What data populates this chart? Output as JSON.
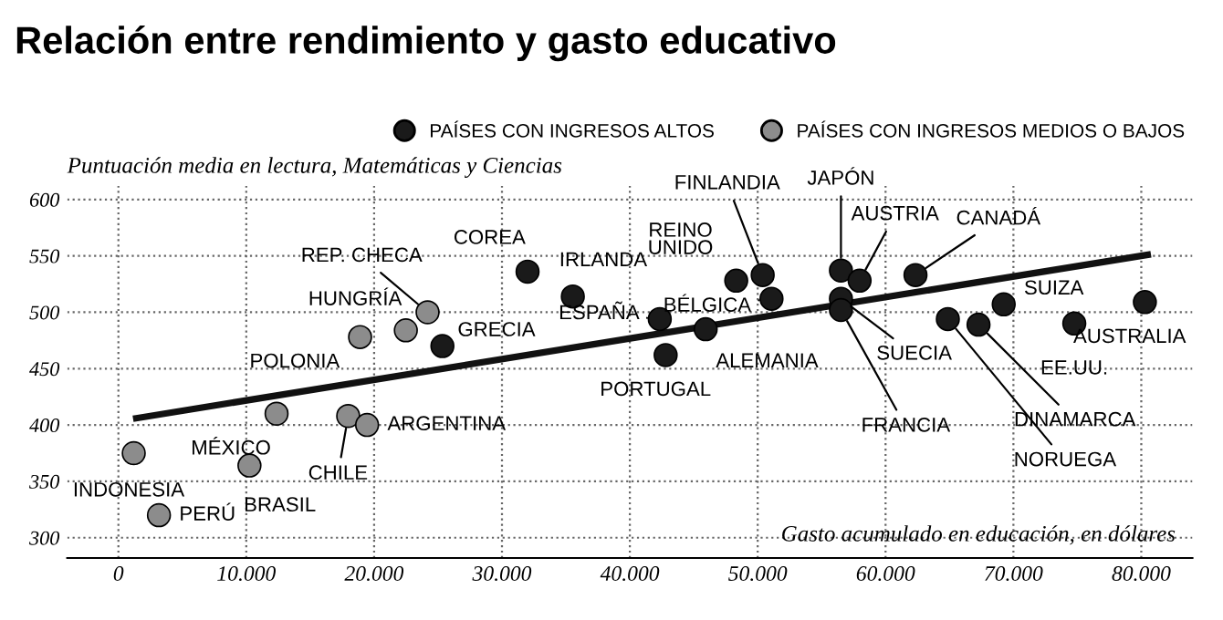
{
  "chart_data": {
    "type": "scatter",
    "title": "Relación entre rendimiento y gasto educativo",
    "ylabel": "Puntuación media en lectura, Matemáticas y Ciencias",
    "xlabel": "Gasto acumulado en educación, en dólares",
    "series": [
      {
        "name": "PAÍSES CON INGRESOS ALTOS",
        "color": "#1a1a1a",
        "x": [
          25340,
          32000,
          35540,
          42340,
          42800,
          45930,
          48320,
          50390,
          51080,
          56510,
          57970,
          56510,
          56510,
          62340,
          64870,
          67270,
          69240,
          74760,
          80280
        ],
        "values": [
          470,
          536,
          514,
          494,
          462,
          485,
          528,
          533,
          512,
          537,
          528,
          512,
          502,
          533,
          494,
          489,
          507,
          490,
          509
        ]
      },
      {
        "name": "PAÍSES CON INGRESOS MEDIOS O BAJOS",
        "color": "#8c8c8c",
        "x": [
          1200,
          3170,
          10250,
          12370,
          17970,
          19450,
          18900,
          22480,
          24180
        ],
        "values": [
          375,
          320,
          364,
          410,
          408,
          400,
          478,
          484,
          500
        ]
      },
      {
        "type": "line",
        "color": "#111111",
        "marker": "none",
        "x": [
          1400,
          80500
        ],
        "values": [
          406,
          551
        ]
      }
    ],
    "annotations": [
      {
        "text": "GRECIA",
        "x": 25340,
        "y": 470
      },
      {
        "text": "COREA",
        "x": 32000,
        "y": 536
      },
      {
        "text": "IRLANDA",
        "x": 35540,
        "y": 514
      },
      {
        "text": "ESPAÑA",
        "x": 42340,
        "y": 494
      },
      {
        "text": "PORTUGAL",
        "x": 42800,
        "y": 462
      },
      {
        "text": "ALEMANIA",
        "x": 45930,
        "y": 485
      },
      {
        "text": "REINO\nUNIDO",
        "x": 48320,
        "y": 528
      },
      {
        "text": "FINLANDIA",
        "x": 50390,
        "y": 533
      },
      {
        "text": "BÉLGICA",
        "x": 51080,
        "y": 512
      },
      {
        "text": "JAPÓN",
        "x": 56510,
        "y": 537
      },
      {
        "text": "AUSTRIA",
        "x": 57970,
        "y": 528
      },
      {
        "text": "SUECIA",
        "x": 56510,
        "y": 512
      },
      {
        "text": "FRANCIA",
        "x": 56510,
        "y": 502
      },
      {
        "text": "CANADÁ",
        "x": 62340,
        "y": 533
      },
      {
        "text": "NORUEGA",
        "x": 64870,
        "y": 494
      },
      {
        "text": "DINAMARCA",
        "x": 67270,
        "y": 489
      },
      {
        "text": "SUIZA",
        "x": 69240,
        "y": 507
      },
      {
        "text": "EE.UU.",
        "x": 74760,
        "y": 490
      },
      {
        "text": "AUSTRALIA",
        "x": 80280,
        "y": 509
      },
      {
        "text": "INDONESIA",
        "x": 1200,
        "y": 375
      },
      {
        "text": "PERÚ",
        "x": 3170,
        "y": 320
      },
      {
        "text": "BRASIL",
        "x": 10250,
        "y": 364
      },
      {
        "text": "MÉXICO",
        "x": 12370,
        "y": 410
      },
      {
        "text": "CHILE",
        "x": 17970,
        "y": 408
      },
      {
        "text": "ARGENTINA",
        "x": 19450,
        "y": 400
      },
      {
        "text": "POLONIA",
        "x": 18900,
        "y": 478
      },
      {
        "text": "HUNGRÍA",
        "x": 22480,
        "y": 484
      },
      {
        "text": "REP. CHECA",
        "x": 24180,
        "y": 500
      }
    ],
    "xlim": [
      -4000,
      84000
    ],
    "ylim": [
      282,
      612
    ],
    "xticks": [
      0,
      {
        "value": 10000,
        "label": "10.000"
      },
      {
        "value": 20000,
        "label": "20.000"
      },
      {
        "value": 30000,
        "label": "30.000"
      },
      {
        "value": 40000,
        "label": "40.000"
      },
      {
        "value": 50000,
        "label": "50.000"
      },
      {
        "value": 60000,
        "label": "60.000"
      },
      {
        "value": 70000,
        "label": "70.000"
      },
      {
        "value": 80000,
        "label": "80.000"
      }
    ],
    "yticks": [
      300,
      350,
      400,
      450,
      500,
      550,
      600
    ],
    "grid": true,
    "legend": "top right",
    "marker": "circle"
  }
}
